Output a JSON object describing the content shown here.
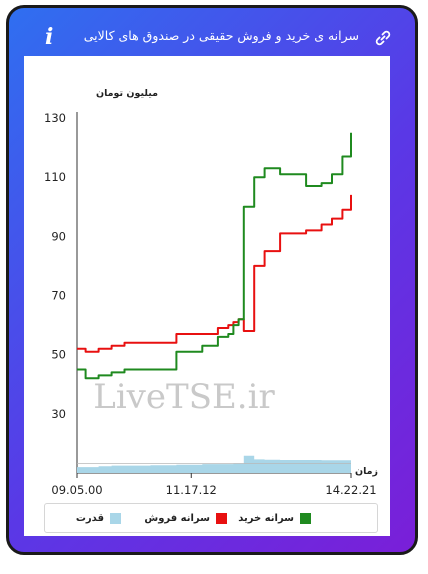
{
  "header": {
    "title": "سرانه ی خرید و فروش حقیقی در صندوق های کالایی",
    "info_icon": "i",
    "link_icon": "link-icon"
  },
  "watermark": "LiveTSE.ir",
  "chart_data": {
    "type": "line",
    "ylabel": "میلیون تومان",
    "xlabel": "زمان",
    "yticks": [
      "30",
      "50",
      "70",
      "90",
      "110",
      "130"
    ],
    "ylim": [
      10,
      130
    ],
    "xlim": [
      9.0833,
      14.3667
    ],
    "xticks": [
      {
        "label": "09.05.00",
        "x": 9.0833
      },
      {
        "label": "11.17.12",
        "x": 11.2867
      },
      {
        "label": "14.22.21",
        "x": 14.3667
      }
    ],
    "x": [
      9.0833,
      9.25,
      9.5,
      9.75,
      10.0,
      10.5,
      11.0,
      11.5,
      11.8,
      12.0,
      12.1,
      12.2,
      12.3,
      12.5,
      12.7,
      13.0,
      13.5,
      13.8,
      14.0,
      14.2,
      14.3667
    ],
    "series": [
      {
        "name": "سرانه خرید",
        "color": "#1f8a1f",
        "values": [
          45,
          42,
          43,
          44,
          45,
          45,
          51,
          53,
          56,
          57,
          60,
          62,
          100,
          110,
          113,
          111,
          107,
          108,
          111,
          117,
          125
        ]
      },
      {
        "name": "سرانه فروش",
        "color": "#e81010",
        "values": [
          52,
          51,
          52,
          53,
          54,
          54,
          57,
          57,
          59,
          60,
          61,
          62,
          58,
          80,
          85,
          91,
          92,
          94,
          96,
          99,
          104
        ]
      }
    ],
    "capacity": {
      "name": "قدرت",
      "color": "#a9d6e8",
      "values": [
        2,
        2,
        2.3,
        2.5,
        2.5,
        2.6,
        2.8,
        3,
        3,
        3,
        3.2,
        3.2,
        5.8,
        4.6,
        4.5,
        4.4,
        4.4,
        4.3,
        4.3,
        4.3,
        4.3
      ]
    },
    "legend": [
      "سرانه خرید",
      "سرانه فروش",
      "قدرت"
    ]
  }
}
